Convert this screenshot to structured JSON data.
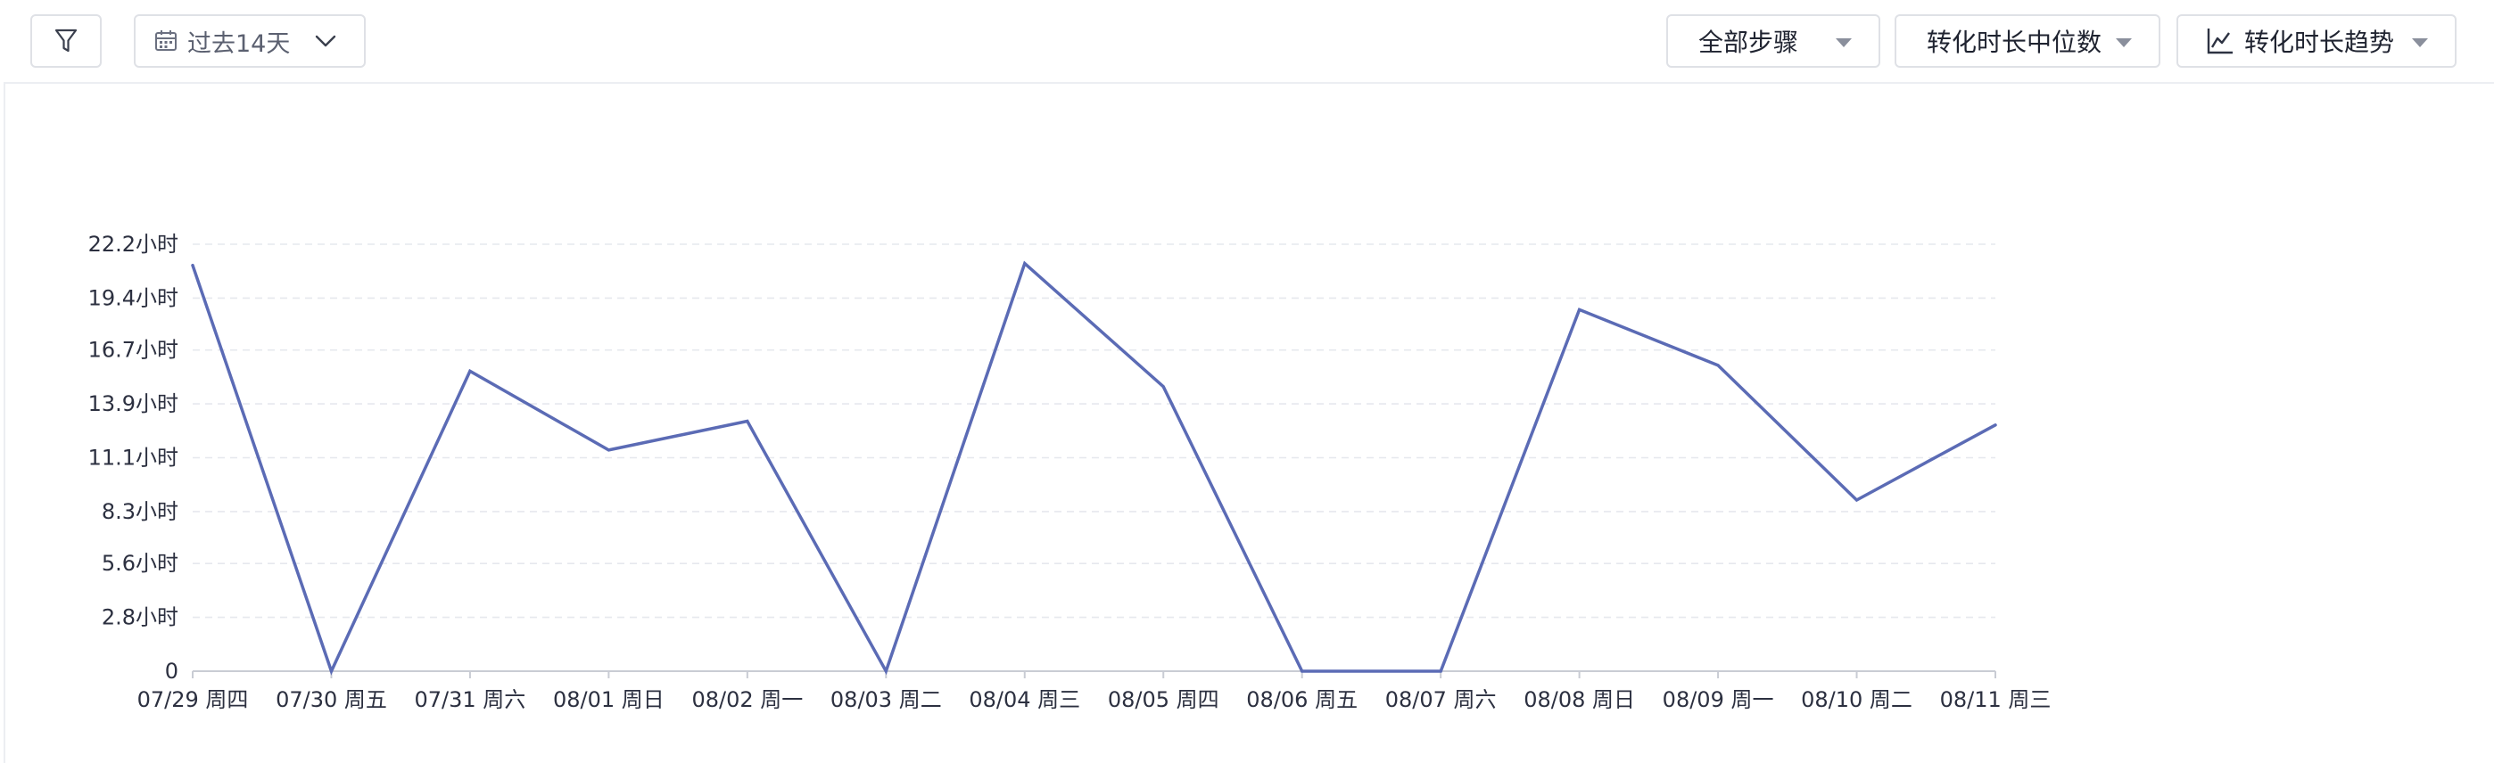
{
  "toolbar": {
    "filter_icon": "filter-icon",
    "date_range_label": "过去14天",
    "date_icon": "calendar-icon",
    "steps_label": "全部步骤",
    "metric_label": "转化时长中位数",
    "trend_label": "转化时长趋势",
    "trend_icon": "line-chart-icon"
  },
  "colors": {
    "line": "#5b6bb5",
    "grid": "#e6e8ee",
    "axis": "#c9ccd4"
  },
  "chart_data": {
    "type": "line",
    "title": "",
    "xlabel": "",
    "ylabel": "",
    "grid": true,
    "ylim": [
      0,
      22.2
    ],
    "y_ticks": [
      0,
      2.8,
      5.6,
      8.3,
      11.1,
      13.9,
      16.7,
      19.4,
      22.2
    ],
    "y_tick_labels": [
      "0",
      "2.8小时",
      "5.6小时",
      "8.3小时",
      "11.1小时",
      "13.9小时",
      "16.7小时",
      "19.4小时",
      "22.2小时"
    ],
    "categories": [
      "07/29 周四",
      "07/30 周五",
      "07/31 周六",
      "08/01 周日",
      "08/02 周一",
      "08/03 周二",
      "08/04 周三",
      "08/05 周四",
      "08/06 周五",
      "08/07 周六",
      "08/08 周日",
      "08/09 周一",
      "08/10 周二",
      "08/11 周三"
    ],
    "series": [
      {
        "values": [
          21.1,
          0,
          15.6,
          11.5,
          13.0,
          0,
          21.2,
          14.8,
          0,
          0,
          18.8,
          15.9,
          8.9,
          12.8
        ]
      }
    ]
  }
}
